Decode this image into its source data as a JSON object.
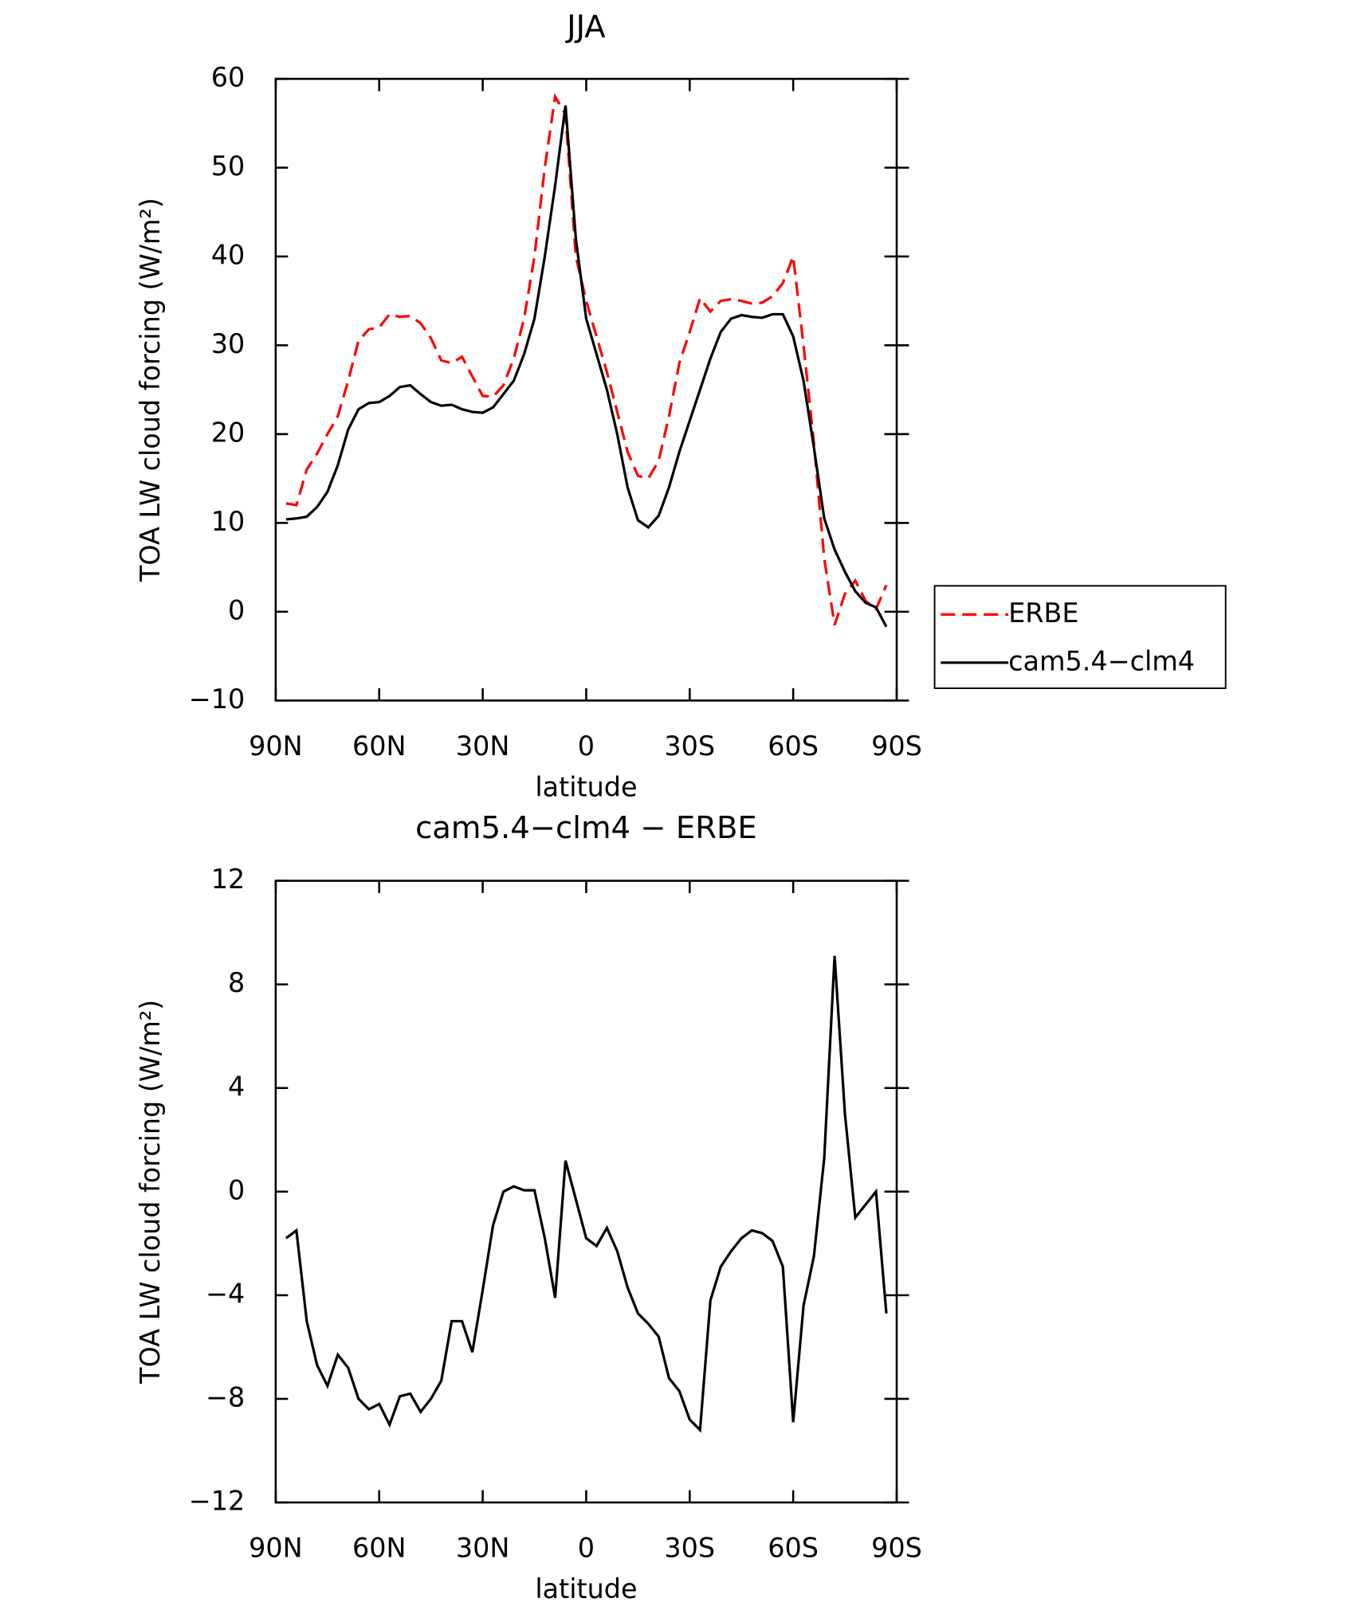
{
  "chart_data": [
    {
      "type": "line",
      "title": "JJA",
      "xlabel": "latitude",
      "ylabel": "TOA LW cloud forcing (W/m²)",
      "x": [
        87,
        84,
        81,
        78,
        75,
        72,
        69,
        66,
        63,
        60,
        57,
        54,
        51,
        48,
        45,
        42,
        39,
        36,
        33,
        30,
        27,
        24,
        21,
        18,
        15,
        12,
        9,
        6,
        3,
        0,
        -3,
        -6,
        -9,
        -12,
        -15,
        -18,
        -21,
        -24,
        -27,
        -30,
        -33,
        -36,
        -39,
        -42,
        -45,
        -48,
        -51,
        -54,
        -57,
        -60,
        -63,
        -66,
        -69,
        -72,
        -75,
        -78,
        -81,
        -84,
        -87
      ],
      "xlim": [
        90,
        -90
      ],
      "xticks": [
        {
          "value": 90,
          "label": "90N"
        },
        {
          "value": 60,
          "label": "60N"
        },
        {
          "value": 30,
          "label": "30N"
        },
        0,
        {
          "value": -30,
          "label": "30S"
        },
        {
          "value": -60,
          "label": "60S"
        },
        {
          "value": -90,
          "label": "90S"
        }
      ],
      "ylim": [
        -10,
        60
      ],
      "yticks": [
        {
          "value": -10,
          "label": "−10"
        },
        0,
        10,
        20,
        30,
        40,
        50,
        60
      ],
      "legend": "right",
      "series": [
        {
          "name": "ERBE",
          "color": "#ff0000",
          "style": "dashed",
          "values": [
            12.2,
            12,
            16,
            17.8,
            20,
            22,
            26,
            30.5,
            31.8,
            32,
            33.5,
            33.2,
            33.3,
            32.5,
            30.8,
            28.3,
            28,
            28.7,
            26.5,
            24.3,
            24.2,
            25.5,
            28.5,
            33,
            40,
            50,
            58,
            56,
            40,
            35,
            31,
            27,
            22.5,
            18,
            15.3,
            15,
            17,
            22,
            28,
            31.5,
            35.3,
            33.8,
            35,
            35.2,
            35,
            34.7,
            34.8,
            35.5,
            37,
            40,
            30,
            19,
            6,
            -1.5,
            2,
            3.5,
            1.2,
            0.3,
            3
          ]
        },
        {
          "name": "cam5.4−clm4",
          "color": "#000000",
          "style": "solid",
          "values": [
            10.4,
            10.5,
            10.7,
            11.8,
            13.5,
            16.5,
            20.5,
            22.8,
            23.5,
            23.6,
            24.3,
            25.3,
            25.5,
            24.5,
            23.6,
            23.2,
            23.3,
            22.8,
            22.5,
            22.4,
            23,
            24.5,
            26,
            29,
            33,
            40,
            48,
            57,
            42,
            33,
            29,
            25,
            20,
            14,
            10.3,
            9.5,
            10.8,
            14,
            18,
            21.5,
            25,
            28.5,
            31.5,
            33,
            33.4,
            33.2,
            33.1,
            33.5,
            33.5,
            31,
            26,
            18.5,
            10.5,
            7,
            4.5,
            2.3,
            1,
            0.5,
            -1.7
          ]
        }
      ]
    },
    {
      "type": "line",
      "title": "cam5.4−clm4 − ERBE",
      "xlabel": "latitude",
      "ylabel": "TOA LW cloud forcing (W/m²)",
      "x": [
        87,
        84,
        81,
        78,
        75,
        72,
        69,
        66,
        63,
        60,
        57,
        54,
        51,
        48,
        45,
        42,
        39,
        36,
        33,
        30,
        27,
        24,
        21,
        18,
        15,
        12,
        9,
        6,
        3,
        0,
        -3,
        -6,
        -9,
        -12,
        -15,
        -18,
        -21,
        -24,
        -27,
        -30,
        -33,
        -36,
        -39,
        -42,
        -45,
        -48,
        -51,
        -54,
        -57,
        -60,
        -63,
        -66,
        -69,
        -72,
        -75,
        -78,
        -81,
        -84,
        -87
      ],
      "xlim": [
        90,
        -90
      ],
      "xticks": [
        {
          "value": 90,
          "label": "90N"
        },
        {
          "value": 60,
          "label": "60N"
        },
        {
          "value": 30,
          "label": "30N"
        },
        0,
        {
          "value": -30,
          "label": "30S"
        },
        {
          "value": -60,
          "label": "60S"
        },
        {
          "value": -90,
          "label": "90S"
        }
      ],
      "ylim": [
        -12,
        12
      ],
      "yticks": [
        {
          "value": -12,
          "label": "−12"
        },
        {
          "value": -8,
          "label": "−8"
        },
        {
          "value": -4,
          "label": "−4"
        },
        0,
        4,
        8,
        12
      ],
      "color": "#000000",
      "values": [
        -1.8,
        -1.5,
        -5,
        -6.7,
        -7.5,
        -6.3,
        -6.8,
        -8,
        -8.4,
        -8.2,
        -9,
        -7.9,
        -7.8,
        -8.5,
        -8,
        -7.3,
        -5,
        -5,
        -6.2,
        -3.8,
        -1.3,
        0,
        0.2,
        0.05,
        0.05,
        -1.8,
        -4.1,
        1.2,
        -0.3,
        -1.8,
        -2.1,
        -1.4,
        -2.3,
        -3.7,
        -4.7,
        -5.1,
        -5.6,
        -7.2,
        -7.7,
        -8.8,
        -9.2,
        -4.2,
        -2.9,
        -2.3,
        -1.8,
        -1.5,
        -1.6,
        -1.9,
        -2.9,
        -8.9,
        -4.4,
        -2.5,
        1.3,
        9.1,
        3,
        -1,
        -0.5,
        0,
        -4.7
      ]
    }
  ]
}
